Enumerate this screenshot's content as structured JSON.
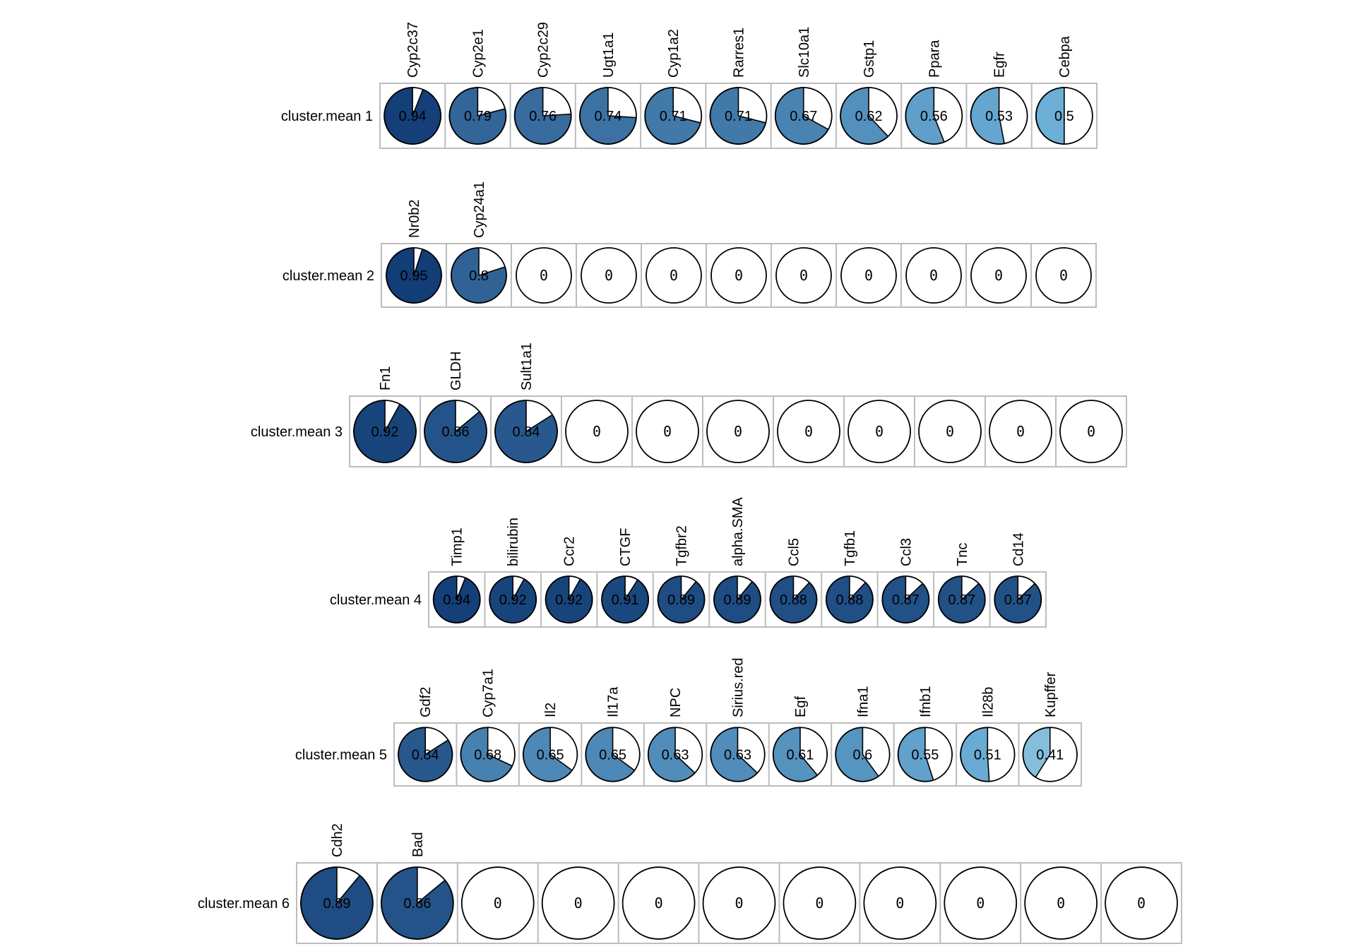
{
  "chart_data": {
    "type": "pie",
    "rows": [
      {
        "label": "cluster.mean 1",
        "genes": [
          "Cyp2c37",
          "Cyp2e1",
          "Cyp2c29",
          "Ugt1a1",
          "Cyp1a2",
          "Rarres1",
          "Slc10a1",
          "Gstp1",
          "Ppara",
          "Egfr",
          "Cebpa"
        ],
        "values": [
          0.94,
          0.79,
          0.76,
          0.74,
          0.71,
          0.71,
          0.67,
          0.62,
          0.56,
          0.53,
          0.5
        ],
        "value_labels": [
          "0.94",
          "0.79",
          "0.76",
          "0.74",
          "0.71",
          "0.71",
          "0.67",
          "0.62",
          "0.56",
          "0.53",
          "0.5"
        ]
      },
      {
        "label": "cluster.mean 2",
        "genes": [
          "Nr0b2",
          "Cyp24a1"
        ],
        "values": [
          0.95,
          0.8,
          0,
          0,
          0,
          0,
          0,
          0,
          0,
          0,
          0
        ],
        "value_labels": [
          "0.95",
          "0.8",
          "0",
          "0",
          "0",
          "0",
          "0",
          "0",
          "0",
          "0",
          "0"
        ]
      },
      {
        "label": "cluster.mean 3",
        "genes": [
          "Fn1",
          "GLDH",
          "Sult1a1"
        ],
        "values": [
          0.92,
          0.86,
          0.84,
          0,
          0,
          0,
          0,
          0,
          0,
          0,
          0
        ],
        "value_labels": [
          "0.92",
          "0.86",
          "0.84",
          "0",
          "0",
          "0",
          "0",
          "0",
          "0",
          "0",
          "0"
        ]
      },
      {
        "label": "cluster.mean 4",
        "genes": [
          "Timp1",
          "bilirubin",
          "Ccr2",
          "CTGF",
          "Tgfbr2",
          "alpha.SMA",
          "Ccl5",
          "Tgfb1",
          "Ccl3",
          "Tnc",
          "Cd14"
        ],
        "values": [
          0.94,
          0.92,
          0.92,
          0.91,
          0.89,
          0.89,
          0.88,
          0.88,
          0.87,
          0.87,
          0.87
        ],
        "value_labels": [
          "0.94",
          "0.92",
          "0.92",
          "0.91",
          "0.89",
          "0.89",
          "0.88",
          "0.88",
          "0.87",
          "0.87",
          "0.87"
        ]
      },
      {
        "label": "cluster.mean 5",
        "genes": [
          "Gdf2",
          "Cyp7a1",
          "Il2",
          "Il17a",
          "NPC",
          "Sirius.red",
          "Egf",
          "Ifna1",
          "Ifnb1",
          "Il28b",
          "Kupffer"
        ],
        "values": [
          0.84,
          0.68,
          0.65,
          0.65,
          0.63,
          0.63,
          0.61,
          0.6,
          0.55,
          0.51,
          0.41
        ],
        "value_labels": [
          "0.84",
          "0.68",
          "0.65",
          "0.65",
          "0.63",
          "0.63",
          "0.61",
          "0.6",
          "0.55",
          "0.51",
          "0.41"
        ]
      },
      {
        "label": "cluster.mean 6",
        "genes": [
          "Cdh2",
          "Bad"
        ],
        "values": [
          0.89,
          0.86,
          0,
          0,
          0,
          0,
          0,
          0,
          0,
          0,
          0
        ],
        "value_labels": [
          "0.89",
          "0.86",
          "0",
          "0",
          "0",
          "0",
          "0",
          "0",
          "0",
          "0",
          "0"
        ]
      }
    ],
    "color_scale": {
      "low": "#ffffff",
      "mid": "#6baed6",
      "high": "#08306b",
      "domain": [
        0,
        1
      ]
    }
  }
}
